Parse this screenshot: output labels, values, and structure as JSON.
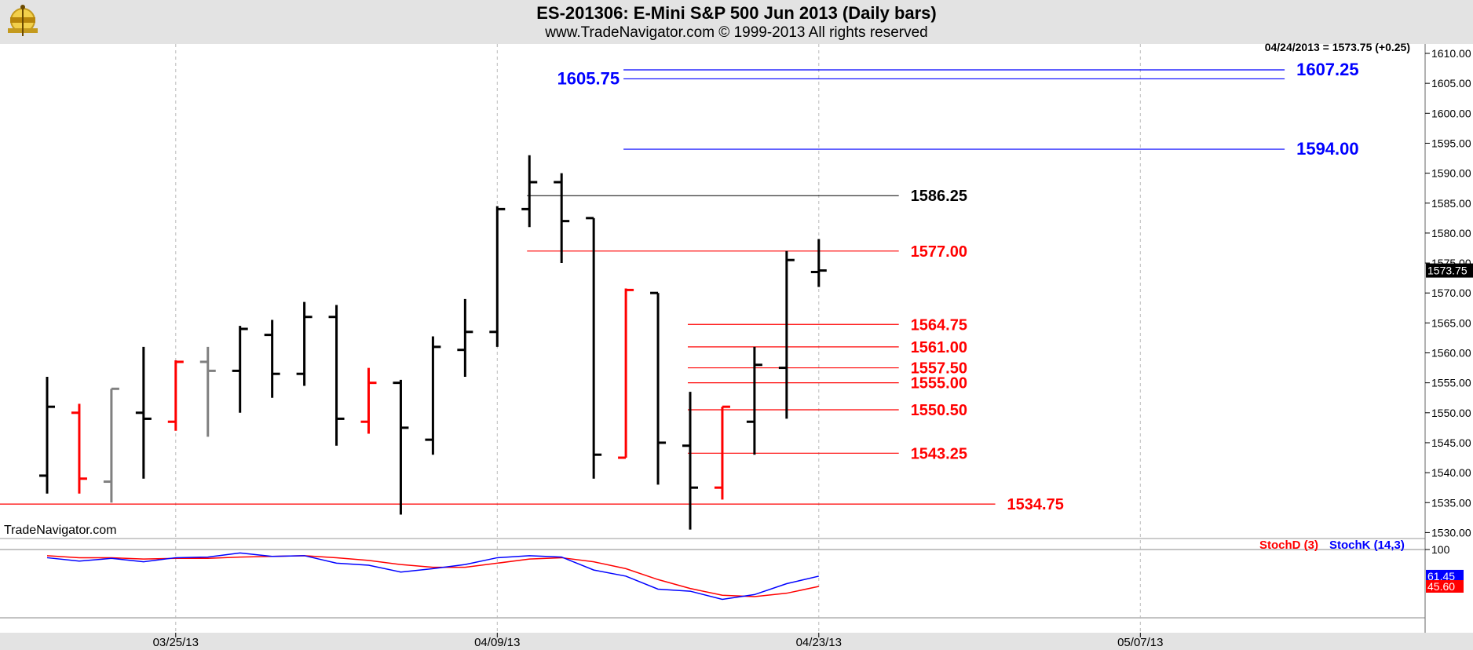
{
  "header": {
    "title": "ES-201306:  E-Mini S&P 500 Jun 2013  (Daily bars)",
    "subtitle": "www.TradeNavigator.com © 1999-2013 All rights reserved"
  },
  "watermark": "TradeNavigator.com",
  "last_quote": "04/24/2013 = 1573.75 (+0.25)",
  "colors": {
    "background": "#ffffff",
    "header_bg": "#e3e3e3",
    "up_bar": "#000000",
    "down_bar": "#ff0000",
    "neutral_bar": "#808080",
    "resistance": "#0000ff",
    "support": "#ff0000",
    "stoch_k": "#0000ff",
    "stoch_d": "#ff0000"
  },
  "chart_data": [
    {
      "type": "ohlc",
      "title": "ES-201306:  E-Mini S&P 500 Jun 2013  (Daily bars)",
      "ylim": [
        1528,
        1612
      ],
      "y_ticks": [
        "1530.00",
        "1535.00",
        "1540.00",
        "1545.00",
        "1550.00",
        "1555.00",
        "1560.00",
        "1565.00",
        "1570.00",
        "1575.00",
        "1580.00",
        "1585.00",
        "1590.00",
        "1595.00",
        "1600.00",
        "1605.00",
        "1610.00"
      ],
      "x_ticks": [
        {
          "label": "03/25/13",
          "index": 4
        },
        {
          "label": "04/09/13",
          "index": 14
        },
        {
          "label": "04/23/13",
          "index": 24
        },
        {
          "label": "05/07/13",
          "index": 34
        }
      ],
      "grid": "vertical-dashed",
      "bars": [
        {
          "o": 1539.5,
          "h": 1556.0,
          "l": 1536.5,
          "c": 1551.0,
          "color": "black"
        },
        {
          "o": 1550.0,
          "h": 1551.5,
          "l": 1536.5,
          "c": 1539.0,
          "color": "red"
        },
        {
          "o": 1538.5,
          "h": 1554.0,
          "l": 1535.0,
          "c": 1554.0,
          "color": "gray"
        },
        {
          "o": 1550.0,
          "h": 1561.0,
          "l": 1539.0,
          "c": 1549.0,
          "color": "black"
        },
        {
          "o": 1548.5,
          "h": 1558.75,
          "l": 1547.0,
          "c": 1558.5,
          "color": "red"
        },
        {
          "o": 1558.5,
          "h": 1561.0,
          "l": 1546.0,
          "c": 1557.0,
          "color": "gray"
        },
        {
          "o": 1557.0,
          "h": 1564.5,
          "l": 1550.0,
          "c": 1564.0,
          "color": "black"
        },
        {
          "o": 1563.0,
          "h": 1565.5,
          "l": 1552.5,
          "c": 1556.5,
          "color": "black"
        },
        {
          "o": 1556.5,
          "h": 1568.5,
          "l": 1554.5,
          "c": 1566.0,
          "color": "black"
        },
        {
          "o": 1566.0,
          "h": 1568.0,
          "l": 1544.5,
          "c": 1549.0,
          "color": "black"
        },
        {
          "o": 1548.5,
          "h": 1557.5,
          "l": 1546.5,
          "c": 1555.0,
          "color": "red"
        },
        {
          "o": 1555.0,
          "h": 1555.5,
          "l": 1533.0,
          "c": 1547.5,
          "color": "black"
        },
        {
          "o": 1545.5,
          "h": 1562.75,
          "l": 1543.0,
          "c": 1561.0,
          "color": "black"
        },
        {
          "o": 1560.5,
          "h": 1569.0,
          "l": 1556.0,
          "c": 1563.5,
          "color": "black"
        },
        {
          "o": 1563.5,
          "h": 1584.5,
          "l": 1561.0,
          "c": 1584.0,
          "color": "black"
        },
        {
          "o": 1584.0,
          "h": 1593.0,
          "l": 1581.0,
          "c": 1588.5,
          "color": "black"
        },
        {
          "o": 1588.5,
          "h": 1590.0,
          "l": 1575.0,
          "c": 1582.0,
          "color": "black"
        },
        {
          "o": 1582.5,
          "h": 1582.5,
          "l": 1539.0,
          "c": 1543.0,
          "color": "black"
        },
        {
          "o": 1542.5,
          "h": 1570.75,
          "l": 1542.5,
          "c": 1570.5,
          "color": "red"
        },
        {
          "o": 1570.0,
          "h": 1570.0,
          "l": 1538.0,
          "c": 1545.0,
          "color": "black"
        },
        {
          "o": 1544.5,
          "h": 1553.5,
          "l": 1530.5,
          "c": 1537.5,
          "color": "black"
        },
        {
          "o": 1537.5,
          "h": 1551.0,
          "l": 1535.5,
          "c": 1551.0,
          "color": "red"
        },
        {
          "o": 1548.5,
          "h": 1561.0,
          "l": 1543.0,
          "c": 1558.0,
          "color": "black"
        },
        {
          "o": 1557.5,
          "h": 1577.0,
          "l": 1549.0,
          "c": 1575.5,
          "color": "black"
        },
        {
          "o": 1573.5,
          "h": 1579.0,
          "l": 1571.0,
          "c": 1573.75,
          "color": "black"
        }
      ],
      "levels": [
        {
          "label": "1607.25",
          "value": 1607.25,
          "color": "blue",
          "start_index": 18,
          "end_index": 38
        },
        {
          "label": "1605.75",
          "value": 1605.75,
          "color": "blue",
          "start_index": 18,
          "end_index": 38
        },
        {
          "label": "1594.00",
          "value": 1594.0,
          "color": "blue",
          "start_index": 18,
          "end_index": 38
        },
        {
          "label": "1586.25",
          "value": 1586.25,
          "color": "black",
          "start_index": 15,
          "end_index": 26
        },
        {
          "label": "1577.00",
          "value": 1577.0,
          "color": "red",
          "start_index": 15,
          "end_index": 26
        },
        {
          "label": "1564.75",
          "value": 1564.75,
          "color": "red",
          "start_index": 20,
          "end_index": 26
        },
        {
          "label": "1561.00",
          "value": 1561.0,
          "color": "red",
          "start_index": 20,
          "end_index": 26
        },
        {
          "label": "1557.50",
          "value": 1557.5,
          "color": "red",
          "start_index": 20,
          "end_index": 26
        },
        {
          "label": "1555.00",
          "value": 1555.0,
          "color": "red",
          "start_index": 20,
          "end_index": 26
        },
        {
          "label": "1550.50",
          "value": 1550.5,
          "color": "red",
          "start_index": 20,
          "end_index": 26
        },
        {
          "label": "1543.25",
          "value": 1543.25,
          "color": "red",
          "start_index": 20,
          "end_index": 26
        },
        {
          "label": "1534.75",
          "value": 1534.75,
          "color": "red",
          "start_index": -1,
          "end_index": 29
        }
      ],
      "last_price_label": "1573.75"
    },
    {
      "type": "line",
      "series": [
        {
          "name": "StochD (3)",
          "color": "red",
          "values": [
            91,
            88,
            88,
            86,
            87,
            87,
            89,
            90,
            91,
            88,
            84,
            78,
            74,
            74,
            80,
            86,
            88,
            82,
            72,
            56,
            43,
            33,
            31,
            36,
            46
          ]
        },
        {
          "name": "StochK (14,3)",
          "color": "blue",
          "values": [
            88,
            83,
            87,
            82,
            88,
            89,
            95,
            90,
            91,
            80,
            77,
            67,
            72,
            78,
            88,
            91,
            89,
            70,
            61,
            42,
            39,
            27,
            34,
            50,
            61
          ]
        }
      ],
      "ylim": [
        0,
        100
      ],
      "y_ticks": [
        "100"
      ],
      "last_values": [
        "61.45",
        "45.60"
      ]
    }
  ]
}
